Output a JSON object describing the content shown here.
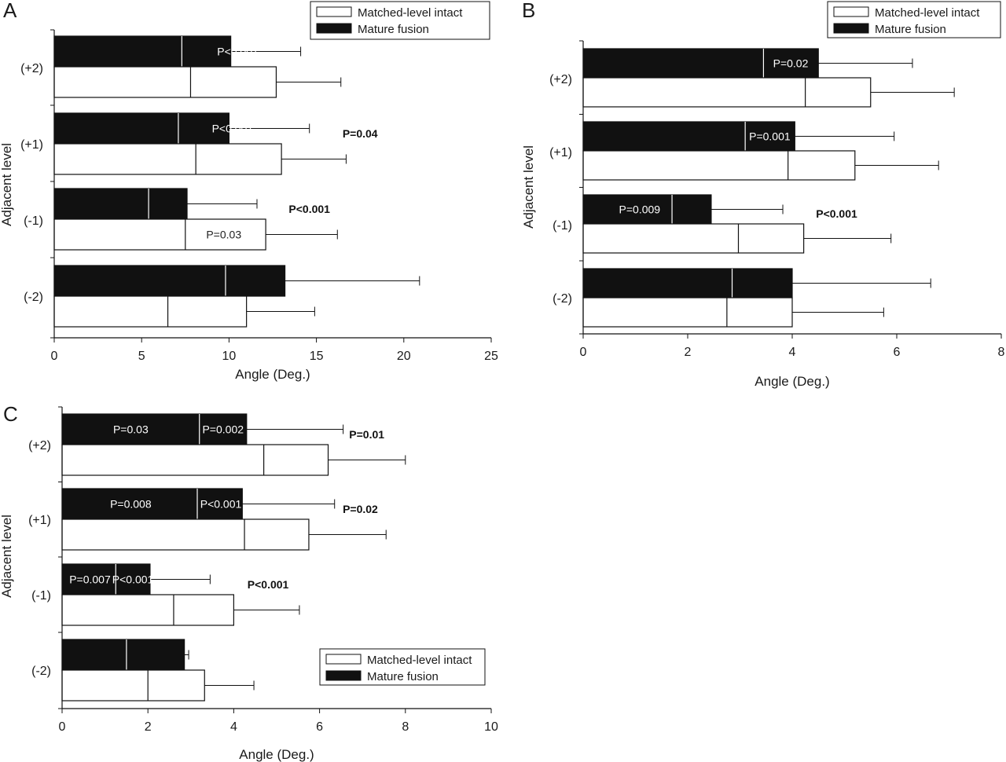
{
  "chart_data": [
    {
      "panel": "A",
      "type": "bar",
      "orientation": "horizontal",
      "categories": [
        "(+2)",
        "(+1)",
        "(-1)",
        "(-2)"
      ],
      "xlabel": "Angle (Deg.)",
      "ylabel": "Adjacent level",
      "xlim": [
        0,
        25
      ],
      "xticks": [
        "0",
        "5",
        "10",
        "15",
        "20",
        "25"
      ],
      "legend_position": "top-right",
      "series": [
        {
          "name": "Mature fusion",
          "color": "#111111",
          "values": [
            10.1,
            10.0,
            7.6,
            13.2
          ],
          "errors": [
            4.0,
            4.6,
            4.0,
            7.7
          ],
          "medians": [
            7.3,
            7.1,
            5.4,
            9.8
          ]
        },
        {
          "name": "Matched-level intact",
          "color": "#ffffff",
          "values": [
            12.7,
            13.0,
            12.1,
            11.0
          ],
          "errors": [
            3.7,
            3.7,
            4.1,
            3.9
          ],
          "medians": [
            7.8,
            8.1,
            7.5,
            6.5
          ]
        }
      ],
      "bar_labels": [
        {
          "series": 0,
          "index": 0,
          "text": "P<0.001",
          "x": 10.5
        },
        {
          "series": 0,
          "index": 1,
          "text": "P<0.001",
          "x": 10.2
        },
        {
          "series": 1,
          "index": 2,
          "text": "P=0.03",
          "x": 9.7
        }
      ],
      "annotations": [
        {
          "index": 1,
          "text": "P=0.04",
          "x": 17.5
        },
        {
          "index": 2,
          "text": "P<0.001",
          "x": 14.6
        }
      ]
    },
    {
      "panel": "B",
      "type": "bar",
      "orientation": "horizontal",
      "categories": [
        "(+2)",
        "(+1)",
        "(-1)",
        "(-2)"
      ],
      "xlabel": "Angle (Deg.)",
      "ylabel": "Adjacent level",
      "xlim": [
        0,
        8
      ],
      "xticks": [
        "0",
        "2",
        "4",
        "6",
        "8"
      ],
      "legend_position": "top-right",
      "series": [
        {
          "name": "Mature fusion",
          "color": "#111111",
          "values": [
            4.5,
            4.05,
            2.45,
            4.0
          ],
          "errors": [
            1.8,
            1.9,
            1.37,
            2.65
          ],
          "medians": [
            3.45,
            3.1,
            1.7,
            2.85
          ]
        },
        {
          "name": "Matched-level intact",
          "color": "#ffffff",
          "values": [
            5.5,
            5.2,
            4.22,
            4.0
          ],
          "errors": [
            1.6,
            1.6,
            1.67,
            1.75
          ],
          "medians": [
            4.25,
            3.92,
            2.97,
            2.75
          ]
        }
      ],
      "bar_labels": [
        {
          "series": 0,
          "index": 0,
          "text": "P=0.02",
          "x": 3.97
        },
        {
          "series": 0,
          "index": 1,
          "text": "P=0.001",
          "x": 3.57
        },
        {
          "series": 0,
          "index": 2,
          "text": "P=0.009",
          "x": 1.08
        }
      ],
      "annotations": [
        {
          "index": 2,
          "text": "P<0.001",
          "x": 4.85
        }
      ]
    },
    {
      "panel": "C",
      "type": "bar",
      "orientation": "horizontal",
      "categories": [
        "(+2)",
        "(+1)",
        "(-1)",
        "(-2)"
      ],
      "xlabel": "Angle (Deg.)",
      "ylabel": "Adjacent level",
      "xlim": [
        0,
        10
      ],
      "xticks": [
        "0",
        "2",
        "4",
        "6",
        "8",
        "10"
      ],
      "legend_position": "bottom-right",
      "series": [
        {
          "name": "Mature fusion",
          "color": "#111111",
          "values": [
            4.3,
            4.2,
            2.05,
            2.85
          ],
          "errors": [
            2.25,
            2.15,
            1.4,
            0.1
          ],
          "medians": [
            3.2,
            3.15,
            1.25,
            1.5
          ]
        },
        {
          "name": "Matched-level intact",
          "color": "#ffffff",
          "values": [
            6.2,
            5.75,
            4.0,
            3.32
          ],
          "errors": [
            1.8,
            1.8,
            1.53,
            1.15
          ],
          "medians": [
            4.7,
            4.25,
            2.6,
            2.0
          ]
        }
      ],
      "bar_labels": [
        {
          "series": 0,
          "index": 0,
          "text": "P=0.03",
          "x": 1.6
        },
        {
          "series": 0,
          "index": 0,
          "text": "P=0.002",
          "x": 3.75
        },
        {
          "series": 0,
          "index": 1,
          "text": "P=0.008",
          "x": 1.6
        },
        {
          "series": 0,
          "index": 1,
          "text": "P<0.001",
          "x": 3.7
        },
        {
          "series": 0,
          "index": 2,
          "text": "P=0.007",
          "x": 0.65
        },
        {
          "series": 0,
          "index": 2,
          "text": "P<0.001",
          "x": 1.65
        }
      ],
      "annotations": [
        {
          "index": 0,
          "text": "P=0.01",
          "x": 7.1
        },
        {
          "index": 1,
          "text": "P=0.02",
          "x": 6.95
        },
        {
          "index": 2,
          "text": "P<0.001",
          "x": 4.8
        }
      ]
    }
  ]
}
